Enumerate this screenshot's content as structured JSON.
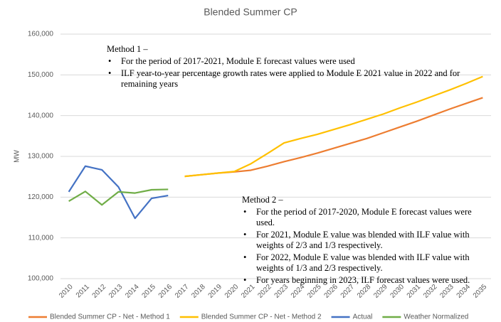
{
  "chart_data": {
    "type": "line",
    "title": "Blended Summer CP",
    "y_label": "MW",
    "categories": [
      "2010",
      "2011",
      "2012",
      "2013",
      "2014",
      "2015",
      "2016",
      "2017",
      "2018",
      "2019",
      "2020",
      "2021",
      "2022",
      "2023",
      "2024",
      "2025",
      "2026",
      "2027",
      "2028",
      "2029",
      "2030",
      "2031",
      "2032",
      "2033",
      "2034",
      "2035"
    ],
    "series": [
      {
        "name": "Blended Summer CP - Net - Method 1",
        "color": "#ed7d31",
        "values": [
          null,
          null,
          null,
          null,
          null,
          null,
          null,
          125100,
          125500,
          125900,
          126200,
          126600,
          127600,
          128700,
          129700,
          130800,
          132000,
          133200,
          134400,
          135800,
          137200,
          138600,
          140100,
          141600,
          143000,
          144400
        ]
      },
      {
        "name": "Blended Summer CP - Net - Method 2",
        "color": "#ffc000",
        "values": [
          null,
          null,
          null,
          null,
          null,
          null,
          null,
          125100,
          125500,
          125900,
          126300,
          128200,
          130700,
          133300,
          134400,
          135400,
          136600,
          137800,
          139100,
          140400,
          141900,
          143300,
          144800,
          146300,
          147900,
          149600
        ]
      },
      {
        "name": "Actual",
        "color": "#4472c4",
        "values": [
          121300,
          127600,
          126700,
          122500,
          114800,
          119700,
          120400,
          null,
          null,
          null,
          null,
          null,
          null,
          null,
          null,
          null,
          null,
          null,
          null,
          null,
          null,
          null,
          null,
          null,
          null,
          null
        ]
      },
      {
        "name": "Weather Normalized",
        "color": "#70ad47",
        "values": [
          119000,
          121400,
          118100,
          121300,
          121000,
          121800,
          121900,
          null,
          null,
          null,
          null,
          null,
          null,
          null,
          null,
          null,
          null,
          null,
          null,
          null,
          null,
          null,
          null,
          null,
          null,
          null
        ]
      }
    ],
    "ylim": [
      100000,
      160000
    ],
    "yticks": [
      {
        "value": 100000,
        "label": "100,000"
      },
      {
        "value": 110000,
        "label": "110,000"
      },
      {
        "value": 120000,
        "label": "120,000"
      },
      {
        "value": 130000,
        "label": "130,000"
      },
      {
        "value": 140000,
        "label": "140,000"
      },
      {
        "value": 150000,
        "label": "150,000"
      },
      {
        "value": 160000,
        "label": "160,000"
      }
    ],
    "grid": true,
    "legend": "bottom",
    "annotations": [
      {
        "title": "Method 1 –",
        "items": [
          "For the period of 2017-2021, Module E forecast values were used",
          "ILF year-to-year percentage growth rates were applied to Module E 2021 value in 2022 and for remaining years"
        ]
      },
      {
        "title": "Method 2 –",
        "items": [
          "For the period of 2017-2020, Module E forecast values were used.",
          "For 2021, Module E value was blended with ILF value with weights of 2/3 and 1/3 respectively.",
          "For 2022, Module E value was blended with ILF value with weights of 1/3 and 2/3 respectively.",
          "For years beginning in 2023, ILF forecast values were used."
        ]
      }
    ]
  }
}
